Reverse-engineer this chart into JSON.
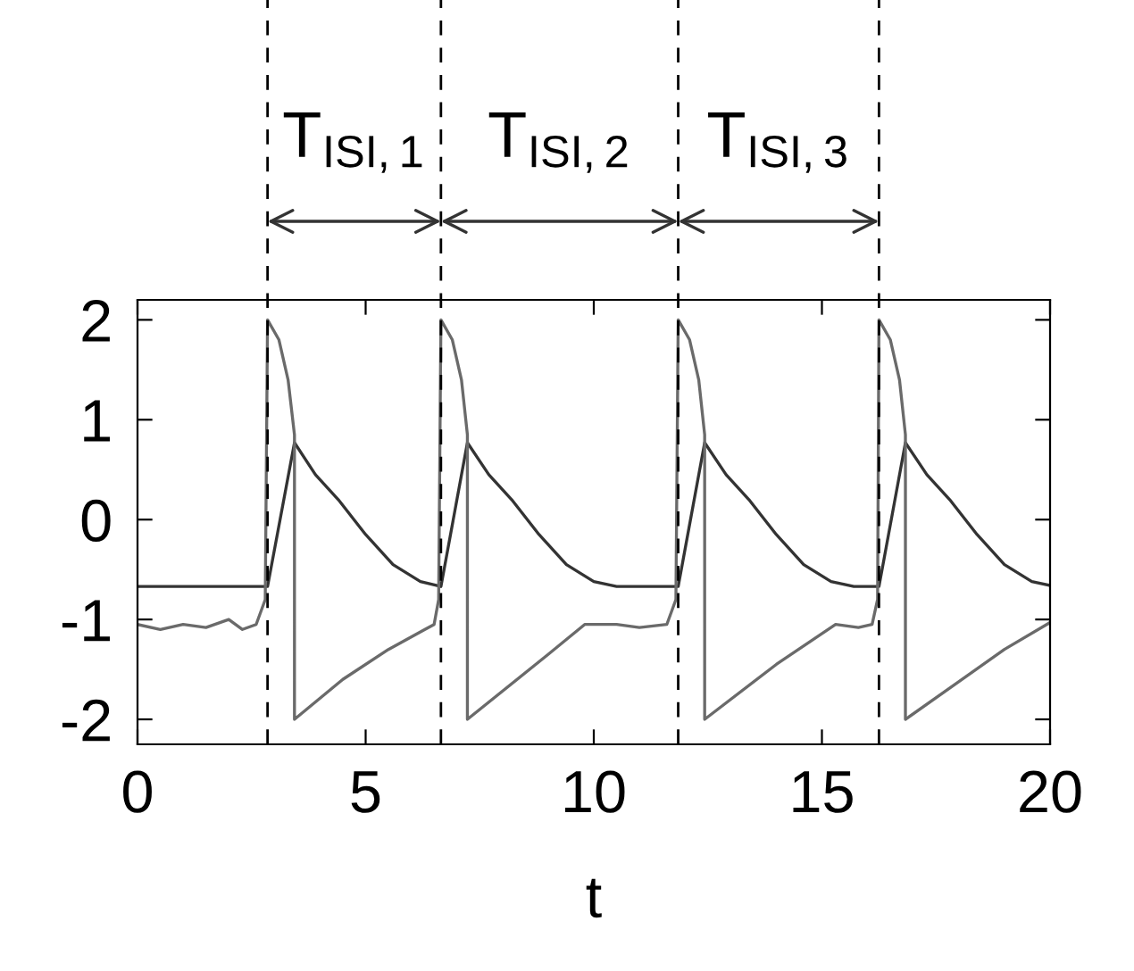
{
  "chart_data": {
    "type": "line",
    "xlabel": "t",
    "xlim": [
      0,
      20
    ],
    "ylim": [
      -2.25,
      2.2
    ],
    "xticks": [
      0,
      5,
      10,
      15,
      20
    ],
    "yticks": [
      -2,
      -1,
      0,
      1,
      2
    ],
    "grid": false,
    "legend": false,
    "marker": "none",
    "line_style": "solid",
    "series": [
      {
        "color": "#333333",
        "x": [
          0,
          2.85,
          3.44,
          3.9,
          4.4,
          5.0,
          5.6,
          6.2,
          6.65,
          7.23,
          7.7,
          8.2,
          8.8,
          9.4,
          10.0,
          10.5,
          11.85,
          12.43,
          12.9,
          13.4,
          14.0,
          14.6,
          15.2,
          15.7,
          16.25,
          16.83,
          17.3,
          17.8,
          18.4,
          19.0,
          19.6,
          20
        ],
        "values": [
          -0.67,
          -0.67,
          0.77,
          0.45,
          0.2,
          -0.15,
          -0.45,
          -0.62,
          -0.67,
          0.77,
          0.45,
          0.2,
          -0.15,
          -0.45,
          -0.62,
          -0.67,
          -0.67,
          0.77,
          0.45,
          0.2,
          -0.15,
          -0.45,
          -0.62,
          -0.67,
          -0.67,
          0.77,
          0.45,
          0.2,
          -0.15,
          -0.45,
          -0.62,
          -0.66
        ]
      },
      {
        "color": "#6a6a6a",
        "x": [
          0,
          0.5,
          1.0,
          1.5,
          2.0,
          2.3,
          2.6,
          2.8,
          2.85,
          3.1,
          3.3,
          3.44,
          3.44,
          4.5,
          5.5,
          6.3,
          6.5,
          6.6,
          6.65,
          6.9,
          7.1,
          7.23,
          7.23,
          9.0,
          9.8,
          10.5,
          11.0,
          11.6,
          11.8,
          11.85,
          12.1,
          12.3,
          12.43,
          12.43,
          14.0,
          15.3,
          15.8,
          16.1,
          16.22,
          16.25,
          16.5,
          16.7,
          16.83,
          16.83,
          19.0,
          20
        ],
        "values": [
          -1.05,
          -1.1,
          -1.05,
          -1.08,
          -1.0,
          -1.1,
          -1.05,
          -0.8,
          2.0,
          1.8,
          1.4,
          0.85,
          -2.0,
          -1.6,
          -1.3,
          -1.1,
          -1.05,
          -0.8,
          2.0,
          1.8,
          1.4,
          0.85,
          -2.0,
          -1.35,
          -1.05,
          -1.05,
          -1.08,
          -1.05,
          -0.8,
          2.0,
          1.8,
          1.4,
          0.85,
          -2.0,
          -1.45,
          -1.05,
          -1.08,
          -1.05,
          -0.8,
          2.0,
          1.8,
          1.4,
          0.85,
          -2.0,
          -1.3,
          -1.03
        ]
      }
    ],
    "ref_lines": [
      {
        "axis": "x",
        "value": 2.85,
        "line_style": "dashed"
      },
      {
        "axis": "x",
        "value": 6.65,
        "line_style": "dashed"
      },
      {
        "axis": "x",
        "value": 11.85,
        "line_style": "dashed"
      },
      {
        "axis": "x",
        "value": 16.25,
        "line_style": "dashed"
      }
    ],
    "annotations": [
      "T$_{ISI,1}$",
      "T$_{ISI,2}$",
      "T$_{ISI,3}$"
    ]
  }
}
